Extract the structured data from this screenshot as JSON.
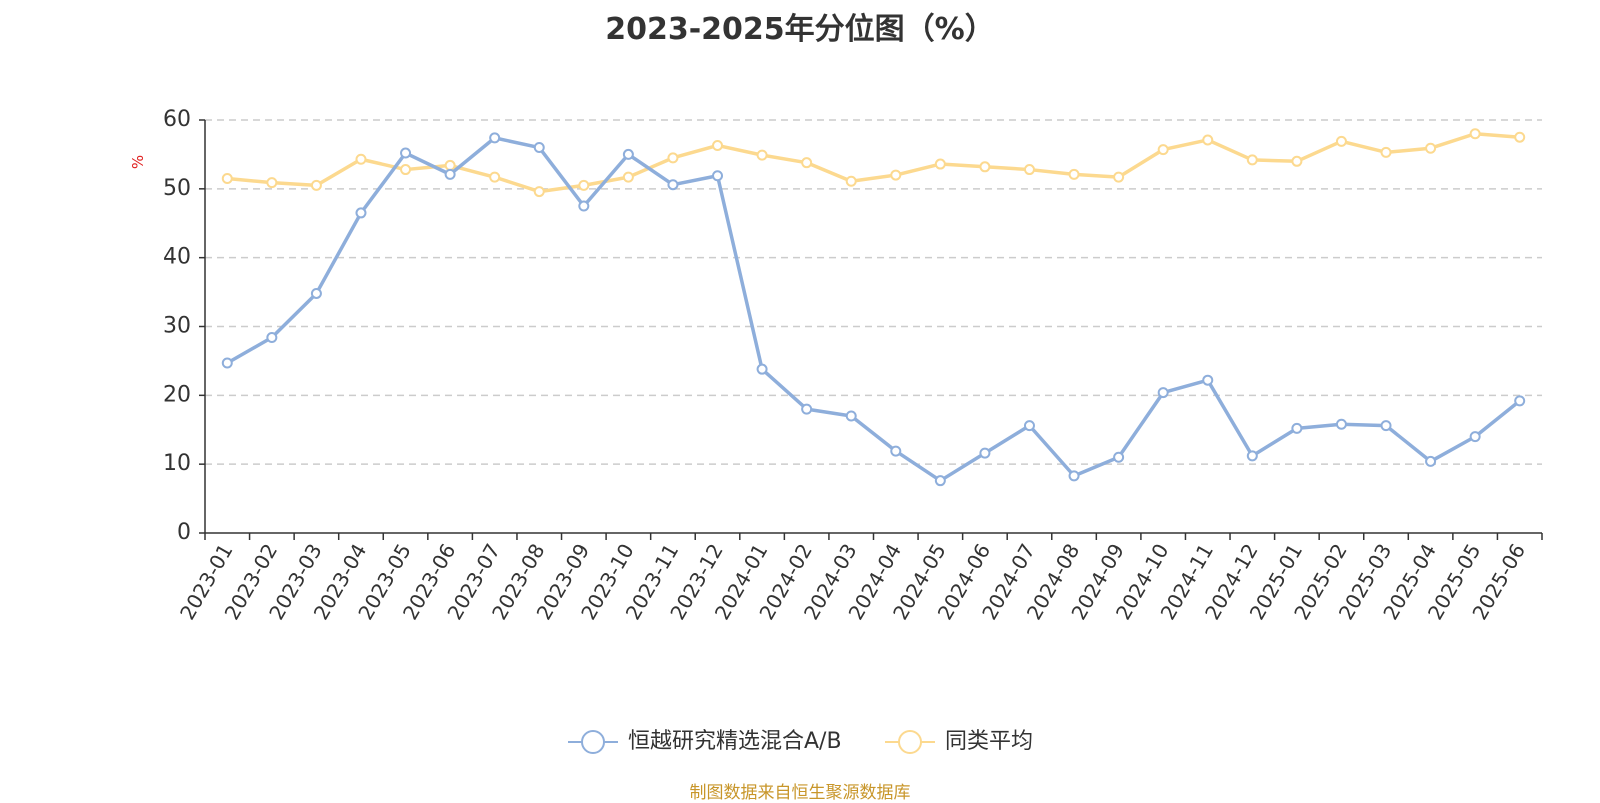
{
  "chart_data": {
    "type": "line",
    "title": "2023-2025年分位图（%）",
    "ylabel": "%",
    "xlabel": "",
    "ylim": [
      0,
      60
    ],
    "yticks": [
      0,
      10,
      20,
      30,
      40,
      50,
      60
    ],
    "grid": true,
    "legend_position": "bottom",
    "categories": [
      "2023-01",
      "2023-02",
      "2023-03",
      "2023-04",
      "2023-05",
      "2023-06",
      "2023-07",
      "2023-08",
      "2023-09",
      "2023-10",
      "2023-11",
      "2023-12",
      "2024-01",
      "2024-02",
      "2024-03",
      "2024-04",
      "2024-05",
      "2024-06",
      "2024-07",
      "2024-08",
      "2024-09",
      "2024-10",
      "2024-11",
      "2024-12",
      "2025-01",
      "2025-02",
      "2025-03",
      "2025-04",
      "2025-05",
      "2025-06"
    ],
    "series": [
      {
        "name": "恒越研究精选混合A/B",
        "color": "#8eaedb",
        "values": [
          24.7,
          28.4,
          34.8,
          46.5,
          55.2,
          52.1,
          57.4,
          56.0,
          47.5,
          55.0,
          50.6,
          51.9,
          23.8,
          18.0,
          17.0,
          11.9,
          7.6,
          11.6,
          15.6,
          8.3,
          11.0,
          20.4,
          22.2,
          11.2,
          15.2,
          15.8,
          15.6,
          10.4,
          14.0,
          19.2
        ]
      },
      {
        "name": "同类平均",
        "color": "#fcd98f",
        "values": [
          51.5,
          50.9,
          50.5,
          54.3,
          52.8,
          53.4,
          51.7,
          49.6,
          50.5,
          51.7,
          54.5,
          56.3,
          54.9,
          53.8,
          51.1,
          52.0,
          53.6,
          53.2,
          52.8,
          52.1,
          51.7,
          55.7,
          57.1,
          54.2,
          54.0,
          56.9,
          55.3,
          55.9,
          58.0,
          57.5
        ]
      }
    ]
  },
  "source_text": "制图数据来自恒生聚源数据库"
}
